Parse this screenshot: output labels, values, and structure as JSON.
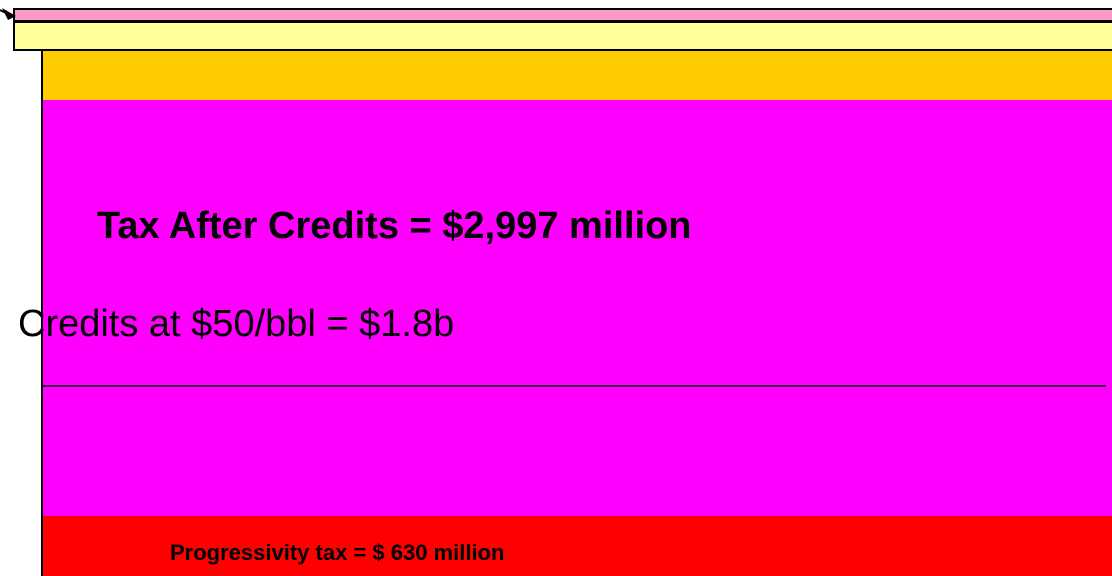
{
  "labels": {
    "tax_after_credits": "Tax After Credits = $2,997 million",
    "credits": "Credits at $50/bbl = $1.8b",
    "progressivity": "Progressivity tax = $ 630 million"
  }
}
